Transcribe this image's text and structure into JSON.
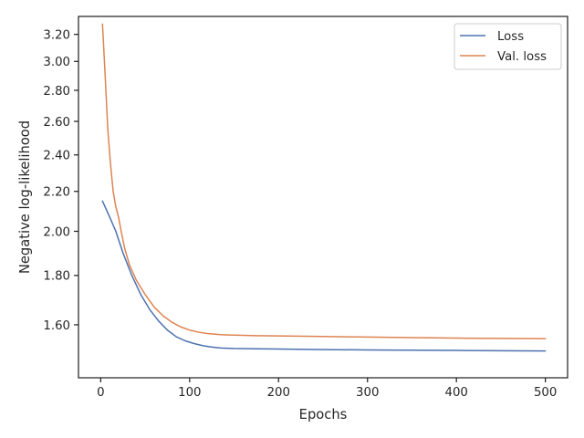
{
  "chart_data": {
    "type": "line",
    "title": "",
    "xlabel": "Epochs",
    "ylabel": "Negative log-likelihood",
    "xscale": "linear",
    "yscale": "log",
    "xlim": [
      -25,
      525
    ],
    "ylim": [
      1.41,
      3.34
    ],
    "xticks": [
      0,
      100,
      200,
      300,
      400,
      500
    ],
    "yticks": [
      1.6,
      1.8,
      2.0,
      2.2,
      2.4,
      2.6,
      2.8,
      3.0,
      3.2
    ],
    "ytick_labels": [
      "1.60",
      "1.80",
      "2.00",
      "2.20",
      "2.40",
      "2.60",
      "2.80",
      "3.00",
      "3.20"
    ],
    "grid": false,
    "legend_position": "top-right",
    "series": [
      {
        "name": "Loss",
        "color": "#4c72b0",
        "x": [
          2,
          10,
          17,
          25,
          35,
          45,
          55,
          65,
          75,
          85,
          95,
          105,
          115,
          125,
          135,
          150,
          175,
          200,
          250,
          300,
          350,
          400,
          450,
          500
        ],
        "y": [
          2.15,
          2.07,
          2.0,
          1.9,
          1.8,
          1.72,
          1.66,
          1.615,
          1.58,
          1.555,
          1.54,
          1.53,
          1.522,
          1.517,
          1.514,
          1.512,
          1.511,
          1.51,
          1.508,
          1.507,
          1.506,
          1.505,
          1.504,
          1.503
        ]
      },
      {
        "name": "Val. loss",
        "color": "#dd8452",
        "x": [
          2,
          5,
          8,
          11,
          14,
          17,
          20,
          23,
          27,
          32,
          40,
          50,
          60,
          70,
          80,
          90,
          100,
          110,
          120,
          135,
          150,
          175,
          200,
          250,
          300,
          350,
          400,
          450,
          500
        ],
        "y": [
          3.28,
          2.9,
          2.55,
          2.35,
          2.2,
          2.12,
          2.07,
          2.0,
          1.92,
          1.85,
          1.78,
          1.72,
          1.67,
          1.635,
          1.61,
          1.592,
          1.58,
          1.572,
          1.567,
          1.563,
          1.561,
          1.559,
          1.558,
          1.556,
          1.554,
          1.552,
          1.55,
          1.549,
          1.548
        ]
      }
    ]
  }
}
